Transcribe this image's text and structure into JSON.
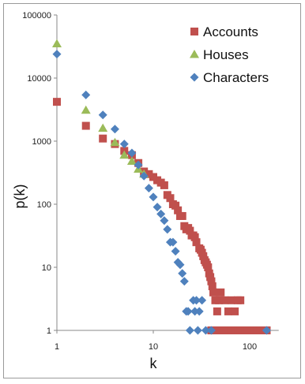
{
  "chart_data": {
    "type": "scatter",
    "title": "",
    "xlabel": "k",
    "ylabel": "p(k)",
    "x_scale": "log",
    "y_scale": "log",
    "xlim": [
      1,
      200
    ],
    "ylim": [
      1,
      100000
    ],
    "x_ticks": [
      "1",
      "10",
      "100"
    ],
    "y_ticks": [
      "1",
      "10",
      "100",
      "1000",
      "10000",
      "100000"
    ],
    "grid": false,
    "legend_position": "top-right",
    "series": [
      {
        "name": "Accounts",
        "marker": "square",
        "color": "#c0504d",
        "points": [
          [
            1,
            4200
          ],
          [
            2,
            1750
          ],
          [
            3,
            1100
          ],
          [
            4,
            900
          ],
          [
            5,
            700
          ],
          [
            6,
            600
          ],
          [
            7,
            450
          ],
          [
            8,
            330
          ],
          [
            9,
            300
          ],
          [
            10,
            270
          ],
          [
            11,
            240
          ],
          [
            12,
            220
          ],
          [
            13,
            200
          ],
          [
            14,
            140
          ],
          [
            15,
            125
          ],
          [
            16,
            100
          ],
          [
            17,
            95
          ],
          [
            18,
            80
          ],
          [
            19,
            65
          ],
          [
            20,
            65
          ],
          [
            21,
            45
          ],
          [
            22,
            40
          ],
          [
            23,
            42
          ],
          [
            24,
            38
          ],
          [
            25,
            32
          ],
          [
            26,
            32
          ],
          [
            27,
            30
          ],
          [
            28,
            25
          ],
          [
            30,
            20
          ],
          [
            31,
            19
          ],
          [
            32,
            17
          ],
          [
            33,
            15
          ],
          [
            34,
            13
          ],
          [
            35,
            12
          ],
          [
            36,
            11
          ],
          [
            37,
            10
          ],
          [
            38,
            8
          ],
          [
            39,
            7
          ],
          [
            40,
            6
          ],
          [
            41,
            5
          ],
          [
            42,
            4
          ],
          [
            44,
            3
          ],
          [
            46,
            2
          ],
          [
            48,
            3
          ],
          [
            50,
            4
          ],
          [
            55,
            3
          ],
          [
            60,
            2
          ],
          [
            65,
            3
          ],
          [
            70,
            2
          ],
          [
            75,
            3
          ],
          [
            80,
            3
          ],
          [
            40,
            1
          ],
          [
            44,
            1
          ],
          [
            48,
            1
          ],
          [
            52,
            1
          ],
          [
            56,
            1
          ],
          [
            60,
            1
          ],
          [
            64,
            1
          ],
          [
            68,
            1
          ],
          [
            72,
            1
          ],
          [
            76,
            1
          ],
          [
            80,
            1
          ],
          [
            85,
            1
          ],
          [
            90,
            1
          ],
          [
            95,
            1
          ],
          [
            100,
            1
          ],
          [
            110,
            1
          ],
          [
            120,
            1
          ],
          [
            130,
            1
          ],
          [
            140,
            1
          ],
          [
            150,
            1
          ]
        ]
      },
      {
        "name": "Houses",
        "marker": "triangle",
        "color": "#9bbb59",
        "points": [
          [
            1,
            35000
          ],
          [
            2,
            3100
          ],
          [
            3,
            1600
          ],
          [
            4,
            950
          ],
          [
            5,
            600
          ],
          [
            6,
            480
          ],
          [
            7,
            360
          ],
          [
            8,
            300
          ]
        ]
      },
      {
        "name": "Characters",
        "marker": "diamond",
        "color": "#4f81bd",
        "points": [
          [
            1,
            24000
          ],
          [
            2,
            5400
          ],
          [
            3,
            2600
          ],
          [
            4,
            1550
          ],
          [
            5,
            900
          ],
          [
            6,
            650
          ],
          [
            7,
            420
          ],
          [
            8,
            280
          ],
          [
            9,
            180
          ],
          [
            10,
            130
          ],
          [
            11,
            90
          ],
          [
            12,
            70
          ],
          [
            13,
            55
          ],
          [
            14,
            40
          ],
          [
            15,
            25
          ],
          [
            16,
            25
          ],
          [
            17,
            18
          ],
          [
            18,
            12
          ],
          [
            19,
            11
          ],
          [
            20,
            8
          ],
          [
            21,
            6
          ],
          [
            22,
            2
          ],
          [
            23,
            2
          ],
          [
            24,
            1
          ],
          [
            26,
            3
          ],
          [
            27,
            2
          ],
          [
            28,
            3
          ],
          [
            29,
            1
          ],
          [
            30,
            2
          ],
          [
            32,
            3
          ],
          [
            35,
            1
          ],
          [
            40,
            1
          ],
          [
            150,
            1
          ]
        ]
      }
    ]
  }
}
